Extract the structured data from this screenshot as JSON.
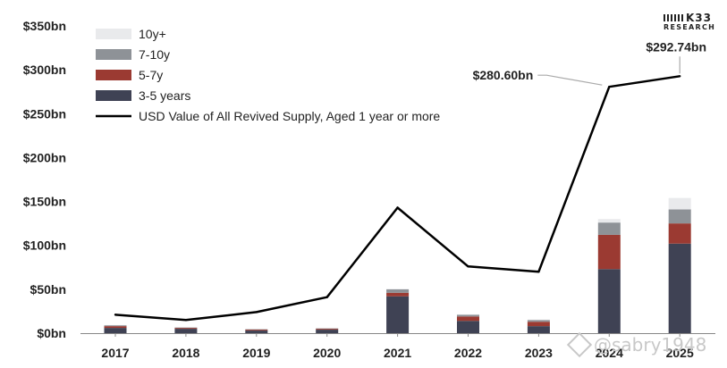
{
  "chart_data": {
    "type": "bar",
    "subtype": "stacked-bar-with-line",
    "categories": [
      "2017",
      "2018",
      "2019",
      "2020",
      "2021",
      "2022",
      "2023",
      "2024",
      "2025"
    ],
    "series": [
      {
        "name": "3-5 years",
        "kind": "bar",
        "color": "#3f4254",
        "values": [
          6,
          5,
          3,
          4,
          42,
          14,
          8,
          73,
          102
        ]
      },
      {
        "name": "5-7y",
        "kind": "bar",
        "color": "#9b3a32",
        "values": [
          2,
          1,
          1,
          1,
          4,
          5,
          5,
          39,
          23
        ]
      },
      {
        "name": "7-10y",
        "kind": "bar",
        "color": "#8e9297",
        "values": [
          1,
          0.5,
          0.5,
          0.5,
          4,
          2,
          2,
          14,
          16
        ]
      },
      {
        "name": "10y+",
        "kind": "bar",
        "color": "#e9eaec",
        "values": [
          0.3,
          0.2,
          0.2,
          0.2,
          0.5,
          0.5,
          0.5,
          4,
          13
        ]
      },
      {
        "name": "USD Value of All Revived Supply, Aged 1 year or more",
        "kind": "line",
        "color": "#000000",
        "values": [
          21,
          15,
          24,
          41,
          143,
          76,
          70,
          280.6,
          292.74
        ]
      }
    ],
    "legend_order": [
      "10y+",
      "7-10y",
      "5-7y",
      "3-5 years",
      "USD Value of All Revived Supply, Aged 1 year or more"
    ],
    "legend_position": "top-left",
    "y_ticks": [
      "$0bn",
      "$50bn",
      "$100bn",
      "$150bn",
      "$200bn",
      "$250bn",
      "$300bn",
      "$350bn"
    ],
    "y_tick_values": [
      0,
      50,
      100,
      150,
      200,
      250,
      300,
      350
    ],
    "ylim": [
      0,
      350
    ],
    "grid": false,
    "annotations": [
      {
        "text": "$280.60bn",
        "category": "2024",
        "value": 280.6
      },
      {
        "text": "$292.74bn",
        "category": "2025",
        "value": 292.74
      }
    ],
    "title": "",
    "xlabel": "",
    "ylabel": ""
  },
  "brand": {
    "name": "K33",
    "sub": "RESEARCH"
  },
  "watermark": {
    "text": "@sabry1948"
  }
}
